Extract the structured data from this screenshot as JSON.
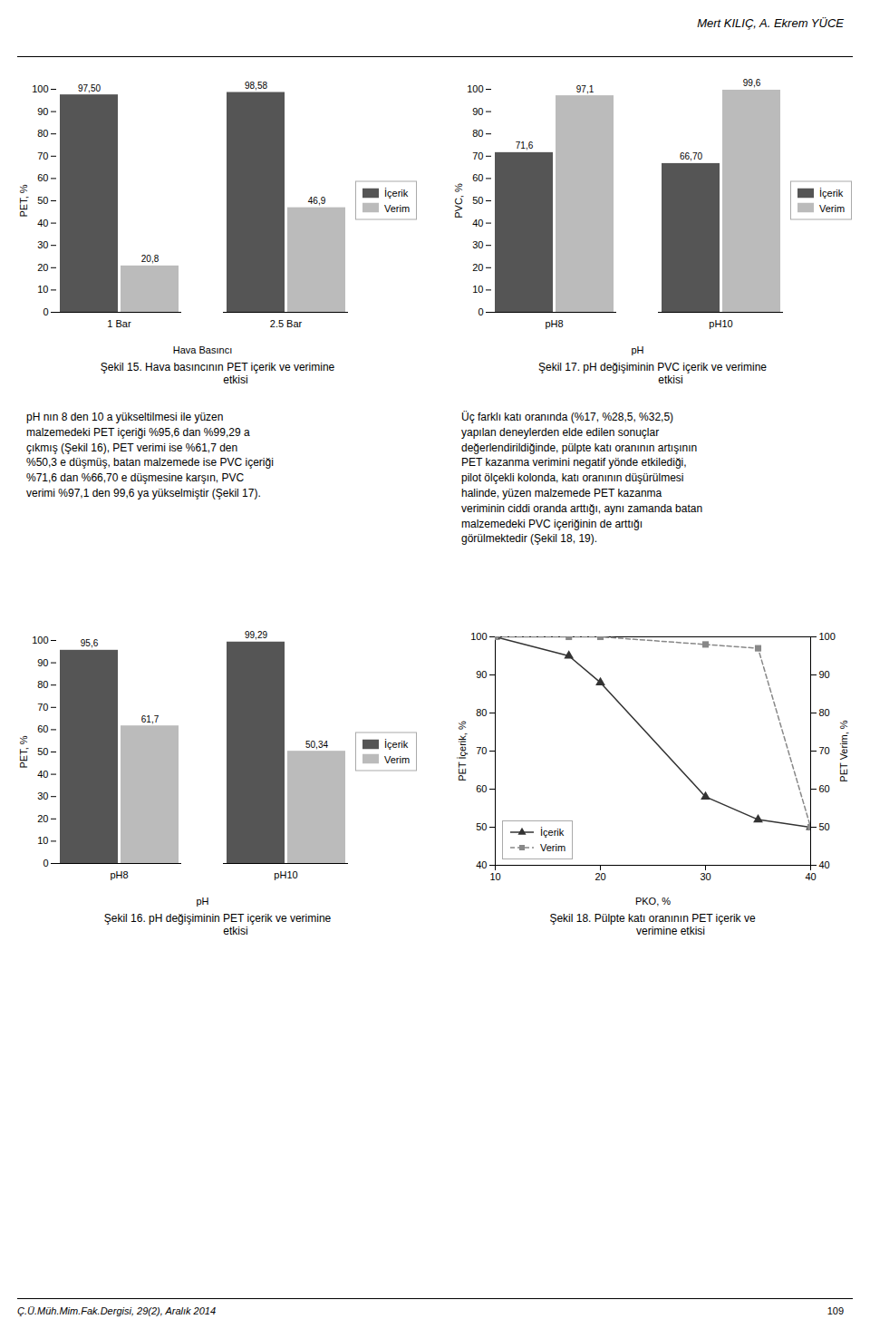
{
  "annotations": [
    "Mert KILIÇ, A. Ekrem YÜCE",
    "Ç.Ü.Müh.Mim.Fak.Dergisi, 29(2), Aralık 2014",
    "109",
    "pH nın 8 den 10 a yükseltilmesi ile yüzen\nmalzemedeki PET içeriği %95,6 dan %99,29 a\nçıkmış (Şekil 16), PET verimi ise %61,7 den\n%50,3 e düşmüş, batan malzemede ise PVC içeriği\n%71,6 dan %66,70 e düşmesine karşın, PVC\nverimi %97,1 den 99,6 ya yükselmiştir (Şekil 17).",
    "Üç farklı katı oranında (%17, %28,5, %32,5)\nyapılan deneylerden elde edilen sonuçlar\ndeğerlendirildiğinde, pülpte katı oranının artışının\nPET kazanma verimini negatif yönde etkilediği,\npilot ölçekli kolonda, katı oranının düşürülmesi\nhalinde, yüzen malzemede PET kazanma\nveriminin ciddi oranda arttığı, aynı zamanda batan\nmalzemedeki PVC içeriğinin de arttığı\ngörülmektedir (Şekil 18, 19)."
  ],
  "chart_data": [
    {
      "type": "bar",
      "title": "Şekil 15. Hava basıncının PET içerik ve verimine\n            etkisi",
      "xlabel": "Hava Basıncı",
      "ylabel": "PET, %",
      "categories": [
        "1 Bar",
        "2.5 Bar"
      ],
      "series": [
        {
          "name": "İçerik",
          "color": "#555555",
          "values": [
            97.5,
            98.58
          ],
          "value_labels": [
            "97,50",
            "98,58"
          ]
        },
        {
          "name": "Verim",
          "color": "#bbbbbb",
          "values": [
            20.8,
            46.9
          ],
          "value_labels": [
            "20,8",
            "46,9"
          ]
        }
      ],
      "ylim": [
        0,
        100
      ],
      "yticks": [
        0,
        10,
        20,
        30,
        40,
        50,
        60,
        70,
        80,
        90,
        100
      ],
      "data_labels": true,
      "legend": "center right",
      "grid": false
    },
    {
      "type": "bar",
      "title": "Şekil 17. pH değişiminin PVC içerik ve verimine\n            etkisi",
      "xlabel": "pH",
      "ylabel": "PVC, %",
      "categories": [
        "pH8",
        "pH10"
      ],
      "series": [
        {
          "name": "İçerik",
          "color": "#555555",
          "values": [
            71.6,
            66.7
          ],
          "value_labels": [
            "71,6",
            "66,70"
          ]
        },
        {
          "name": "Verim",
          "color": "#bbbbbb",
          "values": [
            97.1,
            99.6
          ],
          "value_labels": [
            "97,1",
            "99,6"
          ]
        }
      ],
      "ylim": [
        0,
        100
      ],
      "yticks": [
        0,
        10,
        20,
        30,
        40,
        50,
        60,
        70,
        80,
        90,
        100
      ],
      "data_labels": true,
      "legend": "center right",
      "grid": false
    },
    {
      "type": "bar",
      "title": "Şekil 16. pH değişiminin PET içerik ve verimine\n            etkisi",
      "xlabel": "pH",
      "ylabel": "PET, %",
      "categories": [
        "pH8",
        "pH10"
      ],
      "series": [
        {
          "name": "İçerik",
          "color": "#555555",
          "values": [
            95.6,
            99.29
          ],
          "value_labels": [
            "95,6",
            "99,29"
          ]
        },
        {
          "name": "Verim",
          "color": "#bbbbbb",
          "values": [
            61.7,
            50.34
          ],
          "value_labels": [
            "61,7",
            "50,34"
          ]
        }
      ],
      "ylim": [
        0,
        100
      ],
      "yticks": [
        0,
        10,
        20,
        30,
        40,
        50,
        60,
        70,
        80,
        90,
        100
      ],
      "data_labels": true,
      "legend": "center right",
      "grid": false
    },
    {
      "type": "line",
      "title": "Şekil 18. Pülpte katı oranının PET içerik ve\n            verimine etkisi",
      "xlabel": "PKO, %",
      "ylabel": "PET İçerik, %",
      "y2label": "PET Verim, %",
      "x": [
        10,
        17,
        20,
        30,
        35,
        40
      ],
      "series": [
        {
          "name": "İçerik",
          "color": "#333333",
          "values": [
            100,
            95,
            88,
            58,
            52,
            50
          ],
          "marker": "triangle",
          "line_style": "solid"
        },
        {
          "name": "Verim",
          "color": "#888888",
          "values": [
            100,
            100,
            100,
            98,
            97,
            50
          ],
          "marker": "square",
          "line_style": "dashed",
          "axis": "y2"
        }
      ],
      "xlim": [
        10,
        40
      ],
      "xticks": [
        10,
        20,
        30,
        40
      ],
      "ylim": [
        40,
        100
      ],
      "yticks": [
        40,
        50,
        60,
        70,
        80,
        90,
        100
      ],
      "y2lim": [
        40,
        100
      ],
      "y2ticks": [
        40,
        50,
        60,
        70,
        80,
        90,
        100
      ],
      "legend": "lower left",
      "grid": false
    }
  ]
}
